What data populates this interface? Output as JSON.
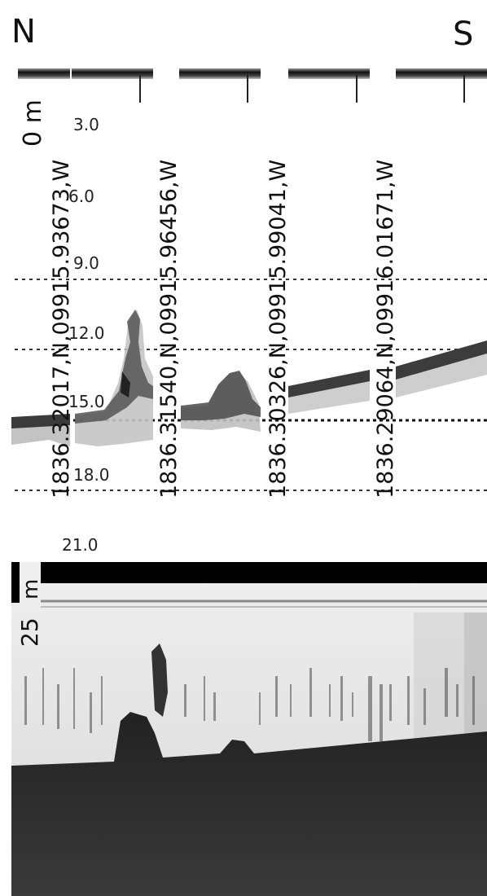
{
  "compass": {
    "north": "N",
    "south": "S"
  },
  "top_panel": {
    "depth_unit_label": "0 m",
    "depth_ticks": [
      "3.0",
      "6.0",
      "9.0",
      "12.0",
      "15.0",
      "18.0",
      "21.0"
    ],
    "transect_labels": [
      "1836.32017,N,09915.93673,W",
      "1836.31540,N,09915.96456,W",
      "1836.30326,N,09915.99041,W",
      "1836.29064,N,09916.01671,W"
    ]
  },
  "bottom_panel": {
    "unit_label": "m",
    "depth_label": "25"
  },
  "colors": {
    "echo_dark": "#1a1a1a",
    "echo_mid": "#808080",
    "echo_light": "#c8c8c8",
    "seabed": "#2a2a2a"
  }
}
